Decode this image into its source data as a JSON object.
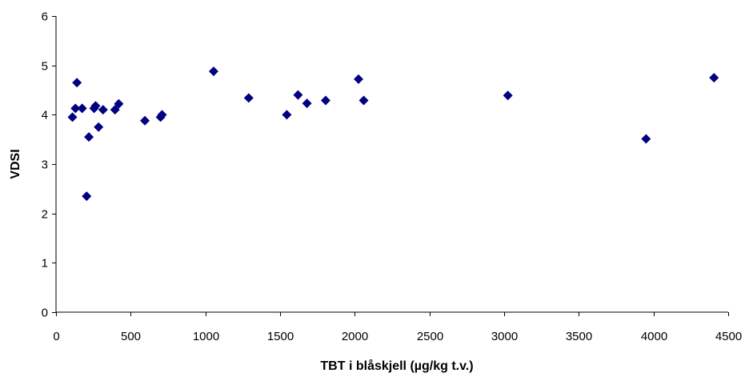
{
  "chart_data": {
    "type": "scatter",
    "title": "",
    "xlabel": "TBT i blåskjell (µg/kg t.v.)",
    "ylabel": "VDSI",
    "xlim": [
      0,
      4500
    ],
    "ylim": [
      0,
      6
    ],
    "xticks": [
      0,
      500,
      1000,
      1500,
      2000,
      2500,
      3000,
      3500,
      4000,
      4500
    ],
    "yticks": [
      0,
      1,
      2,
      3,
      4,
      5,
      6
    ],
    "grid": false,
    "legend": "none",
    "marker": "diamond",
    "marker_color": "#000080",
    "series": [
      {
        "points": [
          {
            "x": 110,
            "y": 3.95
          },
          {
            "x": 130,
            "y": 4.13
          },
          {
            "x": 140,
            "y": 4.65
          },
          {
            "x": 175,
            "y": 4.13
          },
          {
            "x": 205,
            "y": 2.35
          },
          {
            "x": 220,
            "y": 3.55
          },
          {
            "x": 255,
            "y": 4.13
          },
          {
            "x": 265,
            "y": 4.18
          },
          {
            "x": 285,
            "y": 3.75
          },
          {
            "x": 315,
            "y": 4.1
          },
          {
            "x": 395,
            "y": 4.1
          },
          {
            "x": 420,
            "y": 4.22
          },
          {
            "x": 595,
            "y": 3.88
          },
          {
            "x": 700,
            "y": 3.95
          },
          {
            "x": 710,
            "y": 4.0
          },
          {
            "x": 1055,
            "y": 4.88
          },
          {
            "x": 1290,
            "y": 4.34
          },
          {
            "x": 1545,
            "y": 4.0
          },
          {
            "x": 1620,
            "y": 4.4
          },
          {
            "x": 1680,
            "y": 4.23
          },
          {
            "x": 1805,
            "y": 4.29
          },
          {
            "x": 2025,
            "y": 4.72
          },
          {
            "x": 2060,
            "y": 4.29
          },
          {
            "x": 3025,
            "y": 4.39
          },
          {
            "x": 3950,
            "y": 3.51
          },
          {
            "x": 4405,
            "y": 4.75
          }
        ]
      }
    ]
  }
}
